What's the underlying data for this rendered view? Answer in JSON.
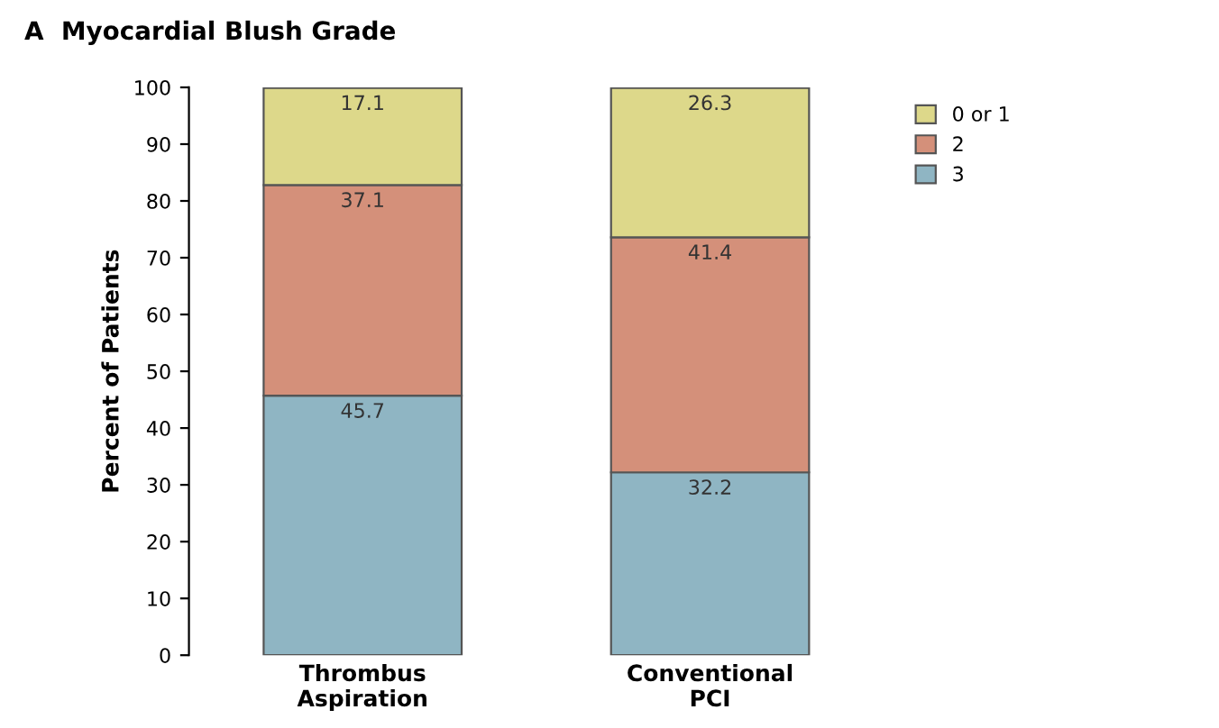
{
  "chart_data": {
    "type": "bar",
    "title": "A  Myocardial Blush Grade",
    "ylabel": "Percent of Patients",
    "categories": [
      "Thrombus\nAspiration",
      "Conventional\nPCI"
    ],
    "series": [
      {
        "name": "3",
        "color": "#8fb5c3",
        "values": [
          45.7,
          32.2
        ]
      },
      {
        "name": "2",
        "color": "#d4907a",
        "values": [
          37.1,
          41.4
        ]
      },
      {
        "name": "0 or 1",
        "color": "#ddd88a",
        "values": [
          17.1,
          26.3
        ]
      }
    ],
    "stacked": true,
    "data_labels": true,
    "ylim": [
      0,
      100
    ],
    "yticks": [
      0,
      10,
      20,
      30,
      40,
      50,
      60,
      70,
      80,
      90,
      100
    ],
    "grid": false,
    "legend": "right"
  }
}
